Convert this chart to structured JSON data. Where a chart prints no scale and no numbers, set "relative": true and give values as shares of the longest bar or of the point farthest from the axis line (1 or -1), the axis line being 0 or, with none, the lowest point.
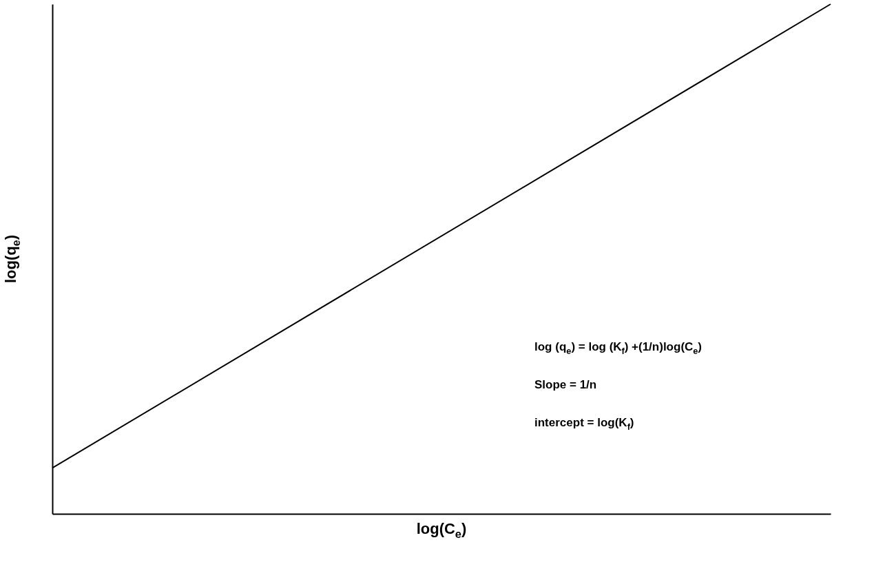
{
  "chart_data": {
    "type": "line",
    "relative": true,
    "xlabel": "log(C$_{e}$)",
    "ylabel": "log(q$_{e}$)",
    "categories": [
      null,
      null
    ],
    "series": [
      {
        "color": "#000000",
        "values": [
          0.09,
          1
        ]
      }
    ],
    "annotations": [
      "log (q$_{e}$) = log (K$_{f}$) +(1/n)log(C$_{e}$)",
      "Slope = 1/n",
      "intercept = log(K$_{f}$)"
    ],
    "grid": false
  }
}
